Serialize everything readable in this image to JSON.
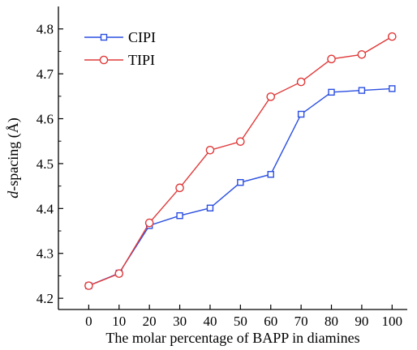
{
  "chart_data": {
    "type": "line",
    "title": "",
    "xlabel": "The molar percentage of BAPP in diamines",
    "ylabel_italic": "d",
    "ylabel_rest": "-spacing (Å)",
    "x": [
      0,
      10,
      20,
      30,
      40,
      50,
      60,
      70,
      80,
      90,
      100
    ],
    "xticks": [
      "0",
      "10",
      "20",
      "30",
      "40",
      "50",
      "60",
      "70",
      "80",
      "90",
      "100"
    ],
    "yticks": [
      "4.2",
      "4.3",
      "4.4",
      "4.5",
      "4.6",
      "4.7",
      "4.8"
    ],
    "xlim": [
      -10,
      105
    ],
    "ylim": [
      4.175,
      4.85
    ],
    "grid": false,
    "legend_position": "top-left",
    "series": [
      {
        "name": "CIPI",
        "marker": "square",
        "color": "#2b4fe0",
        "values": [
          4.228,
          4.256,
          4.362,
          4.384,
          4.401,
          4.458,
          4.476,
          4.61,
          4.659,
          4.663,
          4.667
        ]
      },
      {
        "name": "TIPI",
        "marker": "circle",
        "color": "#e03a3a",
        "values": [
          4.228,
          4.255,
          4.368,
          4.446,
          4.53,
          4.549,
          4.649,
          4.682,
          4.733,
          4.743,
          4.783
        ]
      }
    ]
  }
}
